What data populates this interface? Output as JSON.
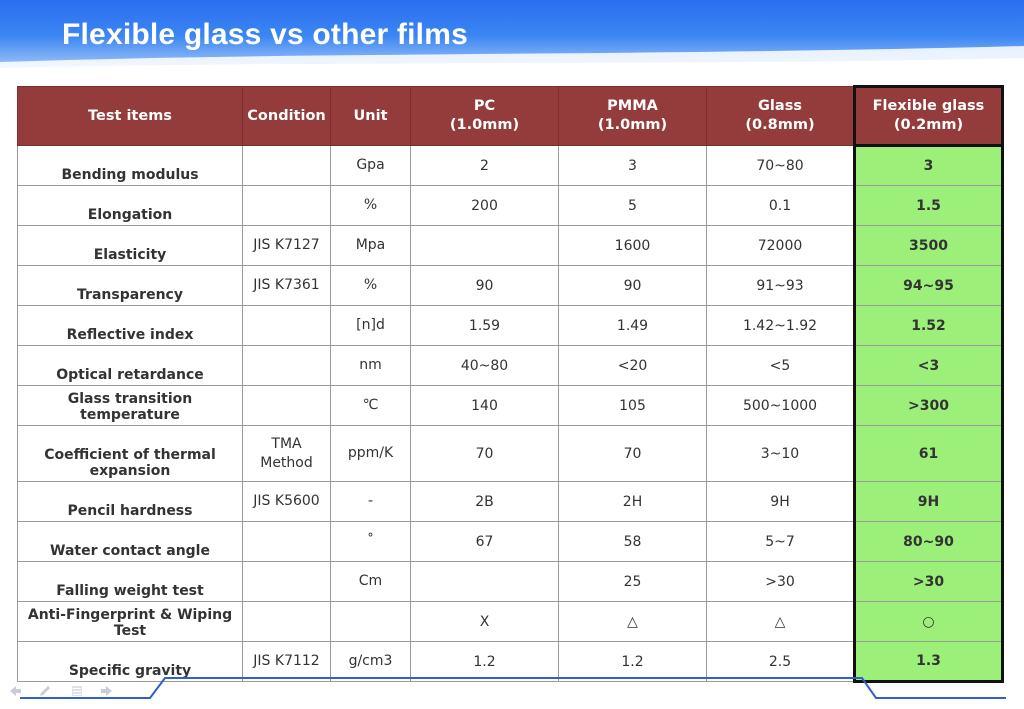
{
  "title": "Flexible glass vs other films",
  "headers": {
    "test_items": "Test items",
    "condition": "Condition",
    "unit": "Unit",
    "pc": "PC\n(1.0mm)",
    "pmma": "PMMA\n(1.0mm)",
    "glass": "Glass\n(0.8mm)",
    "flex": "Flexible glass\n(0.2mm)"
  },
  "rows": [
    {
      "item": "Bending modulus",
      "condition": "",
      "unit": "Gpa",
      "pc": "2",
      "pmma": "3",
      "glass": "70~80",
      "flex": "3"
    },
    {
      "item": "Elongation",
      "condition": "",
      "unit": "%",
      "pc": "200",
      "pmma": "5",
      "glass": "0.1",
      "flex": "1.5"
    },
    {
      "item": "Elasticity",
      "condition": "JIS K7127",
      "unit": "Mpa",
      "pc": "",
      "pmma": "1600",
      "glass": "72000",
      "flex": "3500"
    },
    {
      "item": "Transparency",
      "condition": "JIS K7361",
      "unit": "%",
      "pc": "90",
      "pmma": "90",
      "glass": "91~93",
      "flex": "94~95"
    },
    {
      "item": "Reflective index",
      "condition": "",
      "unit": "[n]d",
      "pc": "1.59",
      "pmma": "1.49",
      "glass": "1.42~1.92",
      "flex": "1.52"
    },
    {
      "item": "Optical retardance",
      "condition": "",
      "unit": "nm",
      "pc": "40~80",
      "pmma": "<20",
      "glass": "<5",
      "flex": "<3"
    },
    {
      "item": "Glass transition temperature",
      "condition": "",
      "unit": "℃",
      "pc": "140",
      "pmma": "105",
      "glass": "500~1000",
      "flex": ">300"
    },
    {
      "item": "Coefficient of thermal expansion",
      "condition": "TMA\nMethod",
      "unit": "ppm/K",
      "pc": "70",
      "pmma": "70",
      "glass": "3~10",
      "flex": "61"
    },
    {
      "item": "Pencil hardness",
      "condition": "JIS K5600",
      "unit": "-",
      "pc": "2B",
      "pmma": "2H",
      "glass": "9H",
      "flex": "9H"
    },
    {
      "item": "Water contact angle",
      "condition": "",
      "unit": "˚",
      "pc": "67",
      "pmma": "58",
      "glass": "5~7",
      "flex": "80~90"
    },
    {
      "item": "Falling weight test",
      "condition": "",
      "unit": "Cm",
      "pc": "",
      "pmma": "25",
      "glass": ">30",
      "flex": ">30"
    },
    {
      "item": "Anti-Fingerprint & Wiping Test",
      "condition": "",
      "unit": "",
      "pc": "X",
      "pmma": "△",
      "glass": "△",
      "flex": "○"
    },
    {
      "item": "Specific gravity",
      "condition": "JIS K7112",
      "unit": "g/cm3",
      "pc": "1.2",
      "pmma": "1.2",
      "glass": "2.5",
      "flex": "1.3"
    }
  ],
  "colors": {
    "header_bg": "#943b3b",
    "highlight": "#9cf07a",
    "title_band": "#2b6ef0"
  },
  "nav_icons": [
    "prev-arrow-icon",
    "pen-icon",
    "menu-icon",
    "next-arrow-icon"
  ]
}
